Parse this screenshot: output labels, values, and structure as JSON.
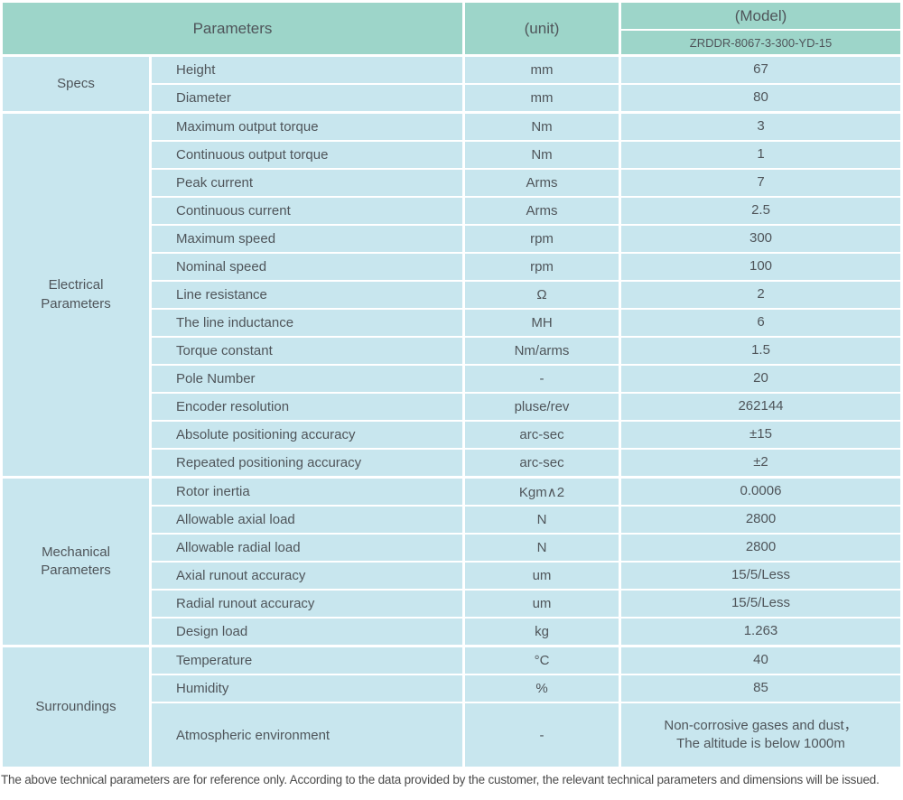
{
  "colors": {
    "header_bg": "#9dd5c9",
    "cell_bg": "#c8e6ee",
    "text": "#4f555a",
    "footnote_text": "#4a4a4a"
  },
  "header": {
    "parameters_label": "Parameters",
    "unit_label": "(unit)",
    "model_label": "(Model)",
    "model_value": "ZRDDR-8067-3-300-YD-15"
  },
  "sections": [
    {
      "id": "specs",
      "category": "Specs",
      "rows": [
        {
          "name": "Height",
          "unit": "mm",
          "value": "67"
        },
        {
          "name": "Diameter",
          "unit": "mm",
          "value": "80"
        }
      ]
    },
    {
      "id": "electrical-parameters",
      "category": "Electrical\nParameters",
      "rows": [
        {
          "name": "Maximum output torque",
          "unit": "Nm",
          "value": "3"
        },
        {
          "name": "Continuous output torque",
          "unit": "Nm",
          "value": "1"
        },
        {
          "name": "Peak current",
          "unit": "Arms",
          "value": "7"
        },
        {
          "name": "Continuous current",
          "unit": "Arms",
          "value": "2.5"
        },
        {
          "name": "Maximum speed",
          "unit": "rpm",
          "value": "300"
        },
        {
          "name": "Nominal speed",
          "unit": "rpm",
          "value": "100"
        },
        {
          "name": "Line resistance",
          "unit": "Ω",
          "value": "2"
        },
        {
          "name": "The line inductance",
          "unit": "MH",
          "value": "6"
        },
        {
          "name": "Torque constant",
          "unit": "Nm/arms",
          "value": "1.5"
        },
        {
          "name": "Pole Number",
          "unit": "-",
          "value": "20"
        },
        {
          "name": "Encoder resolution",
          "unit": "pluse/rev",
          "value": "262144"
        },
        {
          "name": "Absolute positioning accuracy",
          "unit": "arc-sec",
          "value": "±15"
        },
        {
          "name": "Repeated positioning accuracy",
          "unit": "arc-sec",
          "value": "±2"
        }
      ]
    },
    {
      "id": "mechanical-parameters",
      "category": "Mechanical\nParameters",
      "rows": [
        {
          "name": "Rotor inertia",
          "unit": "Kgm∧2",
          "value": "0.0006"
        },
        {
          "name": "Allowable axial load",
          "unit": "N",
          "value": "2800"
        },
        {
          "name": "Allowable radial load",
          "unit": "N",
          "value": "2800"
        },
        {
          "name": "Axial runout accuracy",
          "unit": "um",
          "value": "15/5/Less"
        },
        {
          "name": "Radial runout accuracy",
          "unit": "um",
          "value": "15/5/Less"
        },
        {
          "name": "Design load",
          "unit": "kg",
          "value": "1.263"
        }
      ]
    },
    {
      "id": "surroundings",
      "category": "Surroundings",
      "rows": [
        {
          "name": "Temperature",
          "unit": "°C",
          "value": "40"
        },
        {
          "name": "Humidity",
          "unit": "%",
          "value": "85"
        },
        {
          "name": "Atmospheric environment",
          "unit": "-",
          "value": "Non-corrosive gases and dust，\nThe altitude is below 1000m",
          "tall": true
        }
      ]
    }
  ],
  "footnote": "The above technical parameters are for reference only. According to the data provided by the customer, the relevant technical parameters and dimensions will be issued."
}
